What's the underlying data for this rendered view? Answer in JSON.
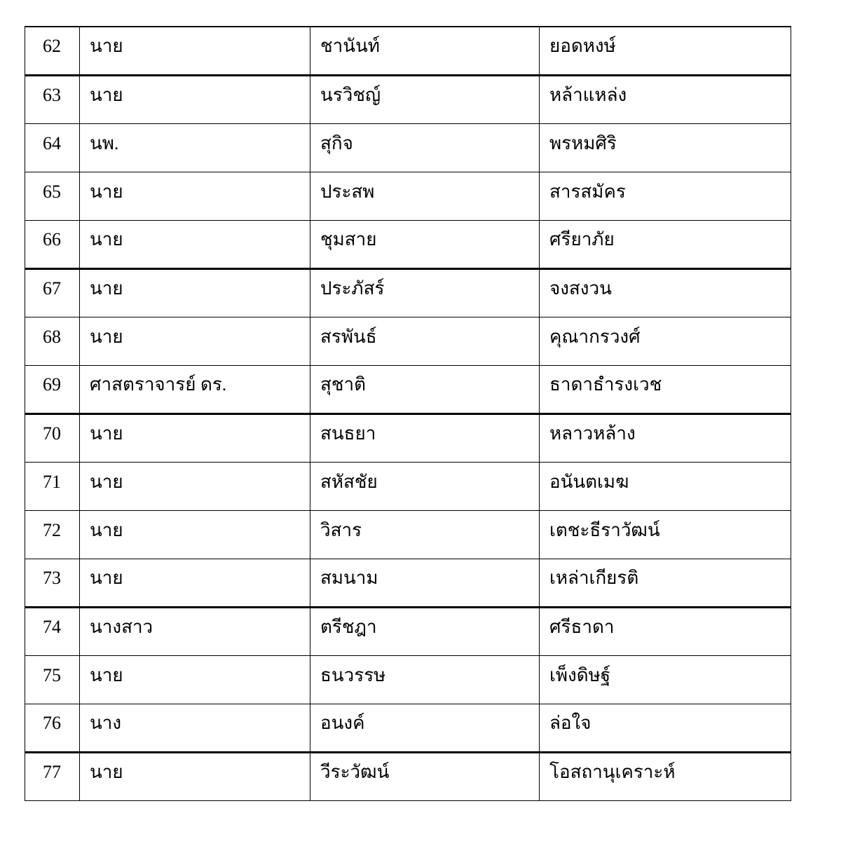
{
  "table": {
    "rows": [
      {
        "no": "62",
        "title": "นาย",
        "first": "ชานันท์",
        "last": "ยอดหงษ์"
      },
      {
        "no": "63",
        "title": "นาย",
        "first": "นรวิชญ์",
        "last": "หล้าแหล่ง"
      },
      {
        "no": "64",
        "title": "นพ.",
        "first": "สุกิจ",
        "last": "พรหมศิริ"
      },
      {
        "no": "65",
        "title": "นาย",
        "first": "ประสพ",
        "last": "สารสมัคร"
      },
      {
        "no": "66",
        "title": "นาย",
        "first": "ชุมสาย",
        "last": "ศรียาภัย"
      },
      {
        "no": "67",
        "title": "นาย",
        "first": "ประภัสร์",
        "last": "จงสงวน"
      },
      {
        "no": "68",
        "title": "นาย",
        "first": "สรพันธ์",
        "last": "คุณากรวงศ์"
      },
      {
        "no": "69",
        "title": "ศาสตราจารย์ ดร.",
        "first": "สุชาติ",
        "last": "ธาดาธำรงเวช"
      },
      {
        "no": "70",
        "title": "นาย",
        "first": "สนธยา",
        "last": "หลาวหล้าง"
      },
      {
        "no": "71",
        "title": "นาย",
        "first": "สหัสชัย",
        "last": "อนันตเมฆ"
      },
      {
        "no": "72",
        "title": "นาย",
        "first": "วิสาร",
        "last": "เตชะธีราวัฒน์"
      },
      {
        "no": "73",
        "title": "นาย",
        "first": "สมนาม",
        "last": "เหล่าเกียรติ"
      },
      {
        "no": "74",
        "title": "นางสาว",
        "first": "ตรีชฎา",
        "last": "ศรีธาดา"
      },
      {
        "no": "75",
        "title": "นาย",
        "first": "ธนวรรษ",
        "last": "เพ็งดิษฐ์"
      },
      {
        "no": "76",
        "title": "นาง",
        "first": "อนงค์",
        "last": "ล่อใจ"
      },
      {
        "no": "77",
        "title": "นาย",
        "first": "วีระวัฒน์",
        "last": "โอสถานุเคราะห์"
      }
    ]
  }
}
